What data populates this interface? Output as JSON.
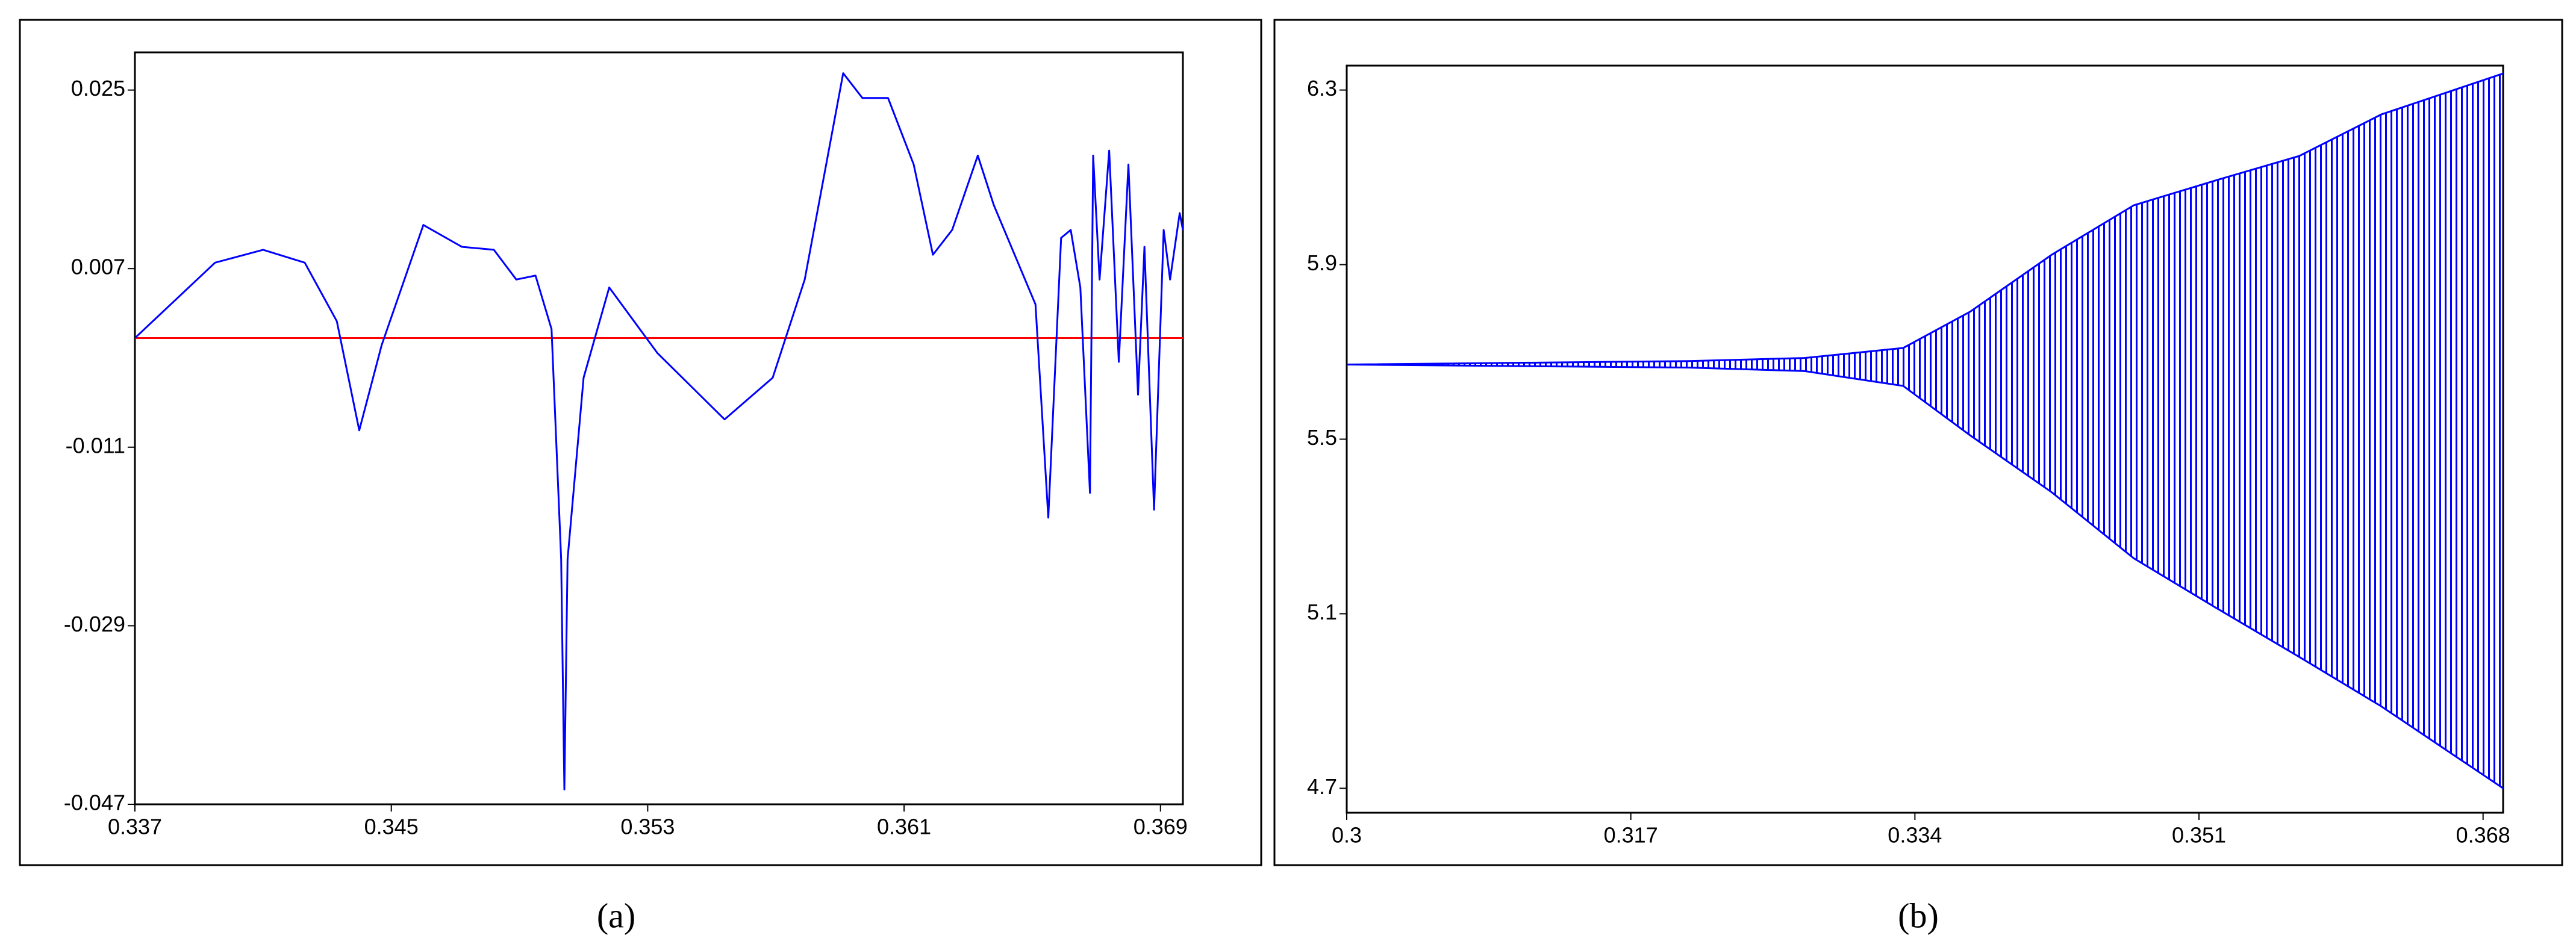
{
  "chart_data": [
    {
      "type": "line",
      "caption": "(a)",
      "x": [
        0.337,
        0.3395,
        0.341,
        0.3423,
        0.3433,
        0.344,
        0.3447,
        0.346,
        0.3472,
        0.3482,
        0.3489,
        0.3495,
        0.35,
        0.3503,
        0.3504,
        0.3505,
        0.351,
        0.3518,
        0.3533,
        0.3554,
        0.3569,
        0.3579,
        0.3591,
        0.3597,
        0.3605,
        0.3613,
        0.3619,
        0.3625,
        0.3633,
        0.3638,
        0.3651,
        0.3655,
        0.3659,
        0.3662,
        0.3665,
        0.3668,
        0.3669,
        0.3671,
        0.3674,
        0.3677,
        0.368,
        0.3683,
        0.3685,
        0.3688,
        0.3691,
        0.3693,
        0.3696,
        0.3697
      ],
      "series": [
        {
          "color": "#0000ff",
          "values": [
            0.0,
            0.0076,
            0.0089,
            0.0076,
            0.0017,
            -0.0093,
            -0.0007,
            0.0114,
            0.0092,
            0.0089,
            0.0059,
            0.0063,
            0.0009,
            -0.0223,
            -0.0455,
            -0.0223,
            -0.004,
            0.0051,
            -0.0015,
            -0.0082,
            -0.004,
            0.0059,
            0.0267,
            0.0242,
            0.0242,
            0.0175,
            0.0084,
            0.0109,
            0.0184,
            0.0134,
            0.0034,
            -0.0181,
            0.0101,
            0.0109,
            0.0051,
            -0.0156,
            0.0184,
            0.0059,
            0.0189,
            -0.0024,
            0.0175,
            -0.0057,
            0.0092,
            -0.0173,
            0.0109,
            0.0059,
            0.0126,
            0.0109
          ]
        }
      ],
      "hline": {
        "value": 0,
        "color": "#ff0000"
      },
      "xlim": [
        0.337,
        0.3697
      ],
      "ylim": [
        -0.047,
        0.0288
      ],
      "xticks": [
        0.337,
        0.345,
        0.353,
        0.361,
        0.369
      ],
      "yticks": [
        0.025,
        0.007,
        -0.011,
        -0.029,
        -0.047
      ]
    },
    {
      "type": "bifurcation",
      "caption": "(b)",
      "x": [
        0.3,
        0.3205,
        0.3274,
        0.3333,
        0.3373,
        0.3422,
        0.3471,
        0.352,
        0.357,
        0.3619,
        0.3692
      ],
      "series": [
        {
          "color": "#0000ff",
          "values": [
            5.671,
            5.679,
            5.686,
            5.709,
            5.792,
            5.923,
            6.036,
            6.093,
            6.149,
            6.244,
            6.338
          ]
        },
        {
          "color": "#0000ff",
          "values": [
            5.671,
            5.664,
            5.656,
            5.622,
            5.509,
            5.378,
            5.227,
            5.114,
            5.001,
            4.888,
            4.7
          ]
        }
      ],
      "xlim": [
        0.3,
        0.3692
      ],
      "ylim": [
        4.644,
        6.356
      ],
      "xticks": [
        0.3,
        0.317,
        0.334,
        0.351,
        0.368
      ],
      "yticks": [
        6.3,
        5.9,
        5.5,
        5.1,
        4.7
      ]
    }
  ]
}
